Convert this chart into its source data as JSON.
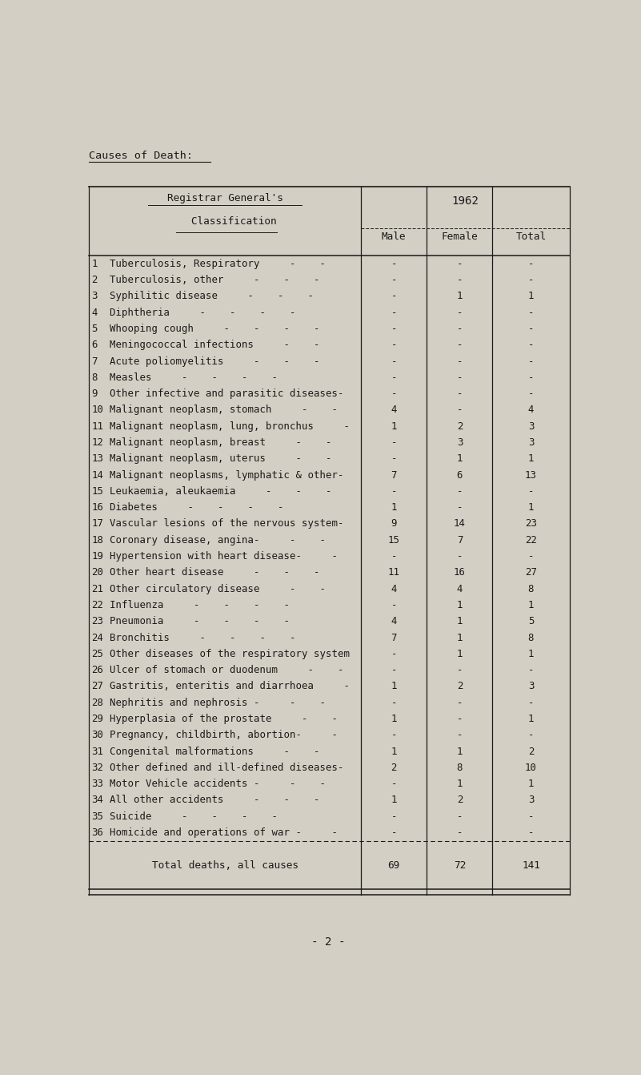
{
  "title": "Causes of Death:",
  "page_number": "- 2 -",
  "bg_color": "#d4cfc4",
  "text_color": "#1a1a1a",
  "rows": [
    {
      "num": "1",
      "label": "Tuberculosis, Respiratory     -    -",
      "male": "-",
      "female": "-",
      "total": "-"
    },
    {
      "num": "2",
      "label": "Tuberculosis, other     -    -    -",
      "male": "-",
      "female": "-",
      "total": "-"
    },
    {
      "num": "3",
      "label": "Syphilitic disease     -    -    -",
      "male": "-",
      "female": "1",
      "total": "1"
    },
    {
      "num": "4",
      "label": "Diphtheria     -    -    -    -",
      "male": "-",
      "female": "-",
      "total": "-"
    },
    {
      "num": "5",
      "label": "Whooping cough     -    -    -    -",
      "male": "-",
      "female": "-",
      "total": "-"
    },
    {
      "num": "6",
      "label": "Meningococcal infections     -    -",
      "male": "-",
      "female": "-",
      "total": "-"
    },
    {
      "num": "7",
      "label": "Acute poliomyelitis     -    -    -",
      "male": "-",
      "female": "-",
      "total": "-"
    },
    {
      "num": "8",
      "label": "Measles     -    -    -    -",
      "male": "-",
      "female": "-",
      "total": "-"
    },
    {
      "num": "9",
      "label": "Other infective and parasitic diseases-",
      "male": "-",
      "female": "-",
      "total": "-"
    },
    {
      "num": "10",
      "label": "Malignant neoplasm, stomach     -    -",
      "male": "4",
      "female": "-",
      "total": "4"
    },
    {
      "num": "11",
      "label": "Malignant neoplasm, lung, bronchus     -",
      "male": "1",
      "female": "2",
      "total": "3"
    },
    {
      "num": "12",
      "label": "Malignant neoplasm, breast     -    -",
      "male": "-",
      "female": "3",
      "total": "3"
    },
    {
      "num": "13",
      "label": "Malignant neoplasm, uterus     -    -",
      "male": "-",
      "female": "1",
      "total": "1"
    },
    {
      "num": "14",
      "label": "Malignant neoplasms, lymphatic & other-",
      "male": "7",
      "female": "6",
      "total": "13"
    },
    {
      "num": "15",
      "label": "Leukaemia, aleukaemia     -    -    -",
      "male": "-",
      "female": "-",
      "total": "-"
    },
    {
      "num": "16",
      "label": "Diabetes     -    -    -    -",
      "male": "1",
      "female": "-",
      "total": "1"
    },
    {
      "num": "17",
      "label": "Vascular lesions of the nervous system-",
      "male": "9",
      "female": "14",
      "total": "23"
    },
    {
      "num": "18",
      "label": "Coronary disease, angina-     -    -",
      "male": "15",
      "female": "7",
      "total": "22"
    },
    {
      "num": "19",
      "label": "Hypertension with heart disease-     -",
      "male": "-",
      "female": "-",
      "total": "-"
    },
    {
      "num": "20",
      "label": "Other heart disease     -    -    -",
      "male": "11",
      "female": "16",
      "total": "27"
    },
    {
      "num": "21",
      "label": "Other circulatory disease     -    -",
      "male": "4",
      "female": "4",
      "total": "8"
    },
    {
      "num": "22",
      "label": "Influenza     -    -    -    -",
      "male": "-",
      "female": "1",
      "total": "1"
    },
    {
      "num": "23",
      "label": "Pneumonia     -    -    -    -",
      "male": "4",
      "female": "1",
      "total": "5"
    },
    {
      "num": "24",
      "label": "Bronchitis     -    -    -    -",
      "male": "7",
      "female": "1",
      "total": "8"
    },
    {
      "num": "25",
      "label": "Other diseases of the respiratory system",
      "male": "-",
      "female": "1",
      "total": "1"
    },
    {
      "num": "26",
      "label": "Ulcer of stomach or duodenum     -    -",
      "male": "-",
      "female": "-",
      "total": "-"
    },
    {
      "num": "27",
      "label": "Gastritis, enteritis and diarrhoea     -",
      "male": "1",
      "female": "2",
      "total": "3"
    },
    {
      "num": "28",
      "label": "Nephritis and nephrosis -     -    -",
      "male": "-",
      "female": "-",
      "total": "-"
    },
    {
      "num": "29",
      "label": "Hyperplasia of the prostate     -    -",
      "male": "1",
      "female": "-",
      "total": "1"
    },
    {
      "num": "30",
      "label": "Pregnancy, childbirth, abortion-     -",
      "male": "-",
      "female": "-",
      "total": "-"
    },
    {
      "num": "31",
      "label": "Congenital malformations     -    -",
      "male": "1",
      "female": "1",
      "total": "2"
    },
    {
      "num": "32",
      "label": "Other defined and ill-defined diseases-",
      "male": "2",
      "female": "8",
      "total": "10"
    },
    {
      "num": "33",
      "label": "Motor Vehicle accidents -     -    -",
      "male": "-",
      "female": "1",
      "total": "1"
    },
    {
      "num": "34",
      "label": "All other accidents     -    -    -",
      "male": "1",
      "female": "2",
      "total": "3"
    },
    {
      "num": "35",
      "label": "Suicide     -    -    -    -",
      "male": "-",
      "female": "-",
      "total": "-"
    },
    {
      "num": "36",
      "label": "Homicide and operations of war -     -",
      "male": "-",
      "female": "-",
      "total": "-"
    }
  ],
  "total_label": "Total deaths, all causes",
  "total_male": "69",
  "total_female": "72",
  "total_total": "141",
  "font_size": 9.2
}
